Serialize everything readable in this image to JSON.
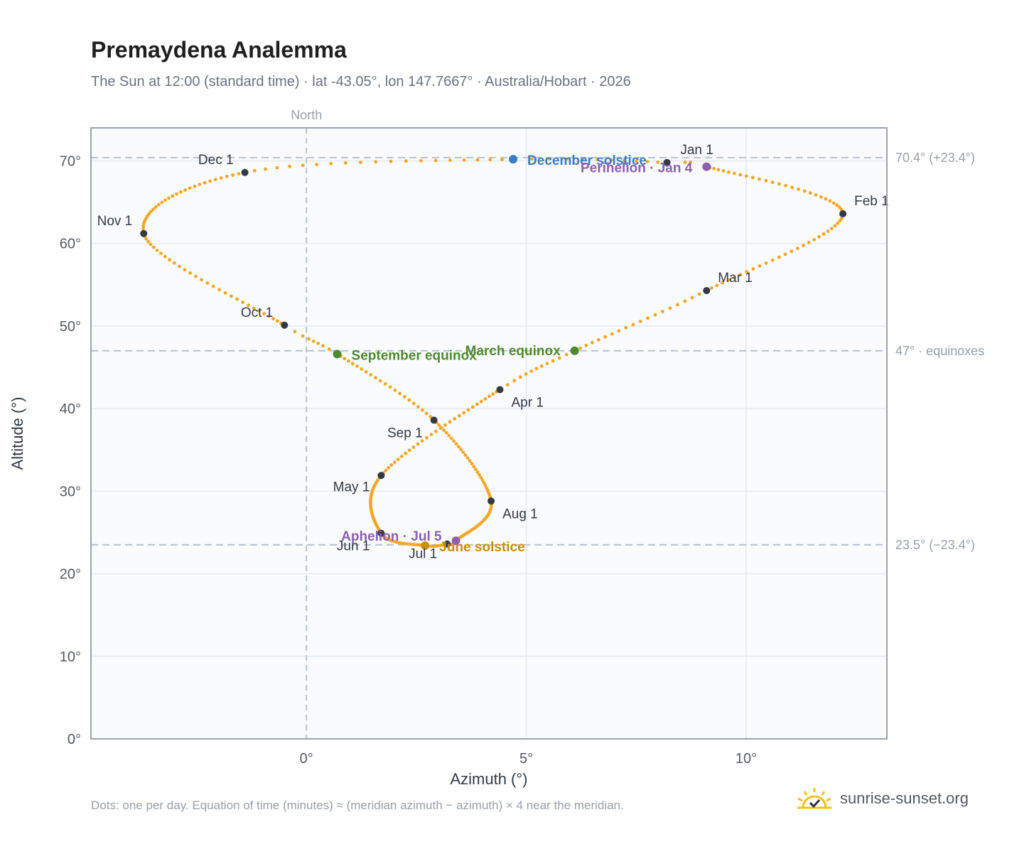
{
  "title": "Premaydena Analemma",
  "subtitle": "The Sun at 12:00 (standard time) · lat -43.05°, lon 147.7667° · Australia/Hobart · 2026",
  "footnote": "Dots: one per day. Equation of time (minutes) ≈ (meridian azimuth − azimuth) × 4 near the meridian.",
  "brand": {
    "name": "sunrise-sunset.org",
    "icon": "sun-check-icon"
  },
  "colors": {
    "curve": "#f5a623",
    "month_marker": "#333a44",
    "december_solstice": "#3b7dc4",
    "june_solstice": "#c8900a",
    "equinox": "#4e8a2e",
    "apsis": "#8e5fb0",
    "reference_line": "#b8c2cf",
    "plot_bg": "#f9fbfd"
  },
  "chart_data": {
    "type": "scatter",
    "title": "Premaydena Analemma",
    "xlabel": "Azimuth (°)",
    "ylabel": "Altitude (°)",
    "xlim": [
      -4.9,
      13.2
    ],
    "ylim": [
      0,
      74
    ],
    "x_ticks": [
      0,
      5,
      10
    ],
    "x_tick_labels": [
      "0°",
      "5°",
      "10°"
    ],
    "y_ticks": [
      0,
      10,
      20,
      30,
      40,
      50,
      60,
      70
    ],
    "y_tick_labels": [
      "0°",
      "10°",
      "20°",
      "30°",
      "40°",
      "50°",
      "60°",
      "70°"
    ],
    "grid": true,
    "north_line": {
      "x": 0,
      "label": "North"
    },
    "reference_lines": [
      {
        "y": 70.4,
        "label": "70.4° (+23.4°)",
        "kind": "solstice"
      },
      {
        "y": 47.0,
        "label": "47° · equinoxes",
        "kind": "equinox"
      },
      {
        "y": 23.5,
        "label": "23.5° (−23.4°)",
        "kind": "solstice"
      }
    ],
    "month_markers": [
      {
        "label": "Jan 1",
        "doy": 1,
        "x": 8.2,
        "y": 69.8
      },
      {
        "label": "Feb 1",
        "doy": 32,
        "x": 12.2,
        "y": 63.6
      },
      {
        "label": "Mar 1",
        "doy": 60,
        "x": 9.1,
        "y": 54.3
      },
      {
        "label": "Apr 1",
        "doy": 91,
        "x": 4.4,
        "y": 42.3
      },
      {
        "label": "May 1",
        "doy": 121,
        "x": 1.7,
        "y": 31.9
      },
      {
        "label": "Jun 1",
        "doy": 152,
        "x": 1.7,
        "y": 24.9
      },
      {
        "label": "Jul 1",
        "doy": 182,
        "x": 3.2,
        "y": 23.6
      },
      {
        "label": "Aug 1",
        "doy": 213,
        "x": 4.2,
        "y": 28.8
      },
      {
        "label": "Sep 1",
        "doy": 244,
        "x": 2.9,
        "y": 38.6
      },
      {
        "label": "Oct 1",
        "doy": 274,
        "x": -0.5,
        "y": 50.1
      },
      {
        "label": "Nov 1",
        "doy": 305,
        "x": -3.7,
        "y": 61.2
      },
      {
        "label": "Dec 1",
        "doy": 335,
        "x": -1.4,
        "y": 68.6
      }
    ],
    "events": [
      {
        "label": "December solstice",
        "doy": 355,
        "x": 4.7,
        "y": 70.2,
        "kind": "december_solstice"
      },
      {
        "label": "Perihelion · Jan 4",
        "doy": 4,
        "x": 9.1,
        "y": 69.3,
        "kind": "apsis"
      },
      {
        "label": "March equinox",
        "doy": 79,
        "x": 6.1,
        "y": 47.0,
        "kind": "equinox"
      },
      {
        "label": "September equinox",
        "doy": 266,
        "x": 0.7,
        "y": 46.6,
        "kind": "equinox"
      },
      {
        "label": "June solstice",
        "doy": 172,
        "x": 2.7,
        "y": 23.4,
        "kind": "june_solstice"
      },
      {
        "label": "Aphelion · Jul 5",
        "doy": 186,
        "x": 3.4,
        "y": 24.0,
        "kind": "apsis"
      }
    ],
    "days_plotted": 365
  }
}
